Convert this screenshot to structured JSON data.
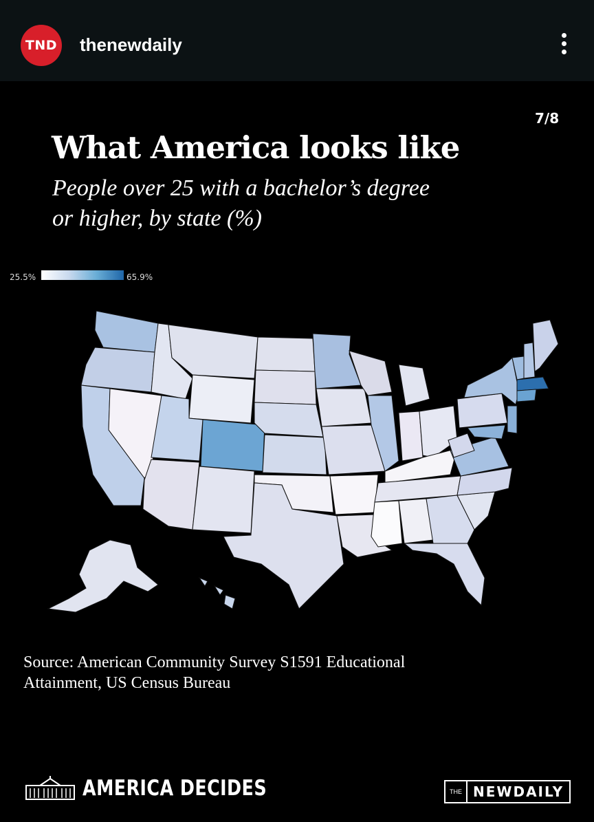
{
  "header": {
    "avatar_text": "TND",
    "username": "thenewdaily"
  },
  "slide_counter": "7/8",
  "title": "What America looks like",
  "subtitle_line1": "People over 25 with a bachelor’s degree",
  "subtitle_line2": "or higher, by state (%)",
  "legend": {
    "min": "25.5%",
    "max": "65.9%",
    "colors": [
      "#ffffff",
      "#1f66a8"
    ]
  },
  "map_data": {
    "type": "choropleth",
    "region": "United States by state",
    "scale_min": 25.5,
    "scale_max": 65.9,
    "highlighted": {
      "colorado": "high",
      "massachusetts": "highest",
      "new_england_northeast": "high",
      "minnesota": "medium-high",
      "washington": "medium-high",
      "virginia_maryland": "medium-high",
      "california": "medium",
      "illinois": "medium",
      "new_york": "medium"
    }
  },
  "source_line1": "Source: American Community Survey S1591 Educational",
  "source_line2": "Attainment, US Census Bureau",
  "footer": {
    "left_label": "AMERICA DECIDES",
    "right_the": "THE",
    "right_name": "NEWDAILY"
  }
}
